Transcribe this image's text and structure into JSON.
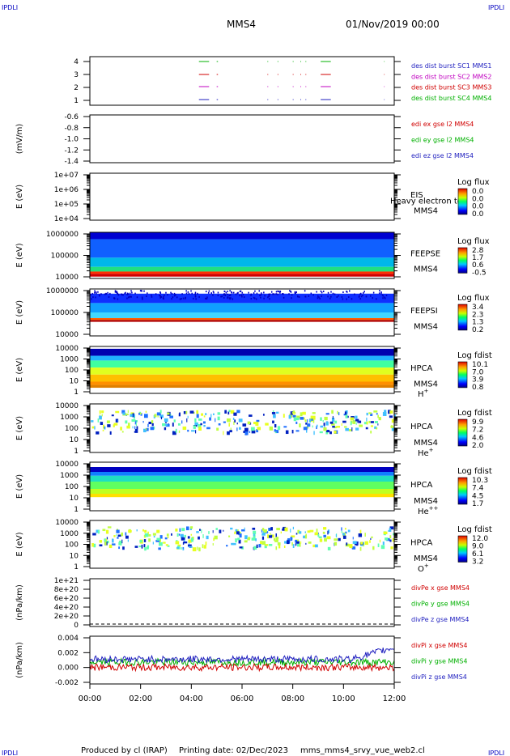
{
  "header": {
    "corner_label": "IPDLI",
    "title": "MMS4",
    "date": "01/Nov/2019 00:00"
  },
  "footer": {
    "produced_by": "Produced by cl (IRAP)",
    "printing_date": "Printing date: 02/Dec/2023",
    "filename": "mms_mms4_srvy_vue_web2.cl"
  },
  "chart_data": {
    "type": "spectrogram",
    "x_ticks": [
      "00:00",
      "02:00",
      "04:00",
      "06:00",
      "08:00",
      "10:00",
      "12:00"
    ],
    "x_range_hours": [
      0,
      12
    ],
    "panels": [
      {
        "id": "burst",
        "kind": "burst",
        "ylabel": "",
        "y_ticks": [
          "4",
          "3",
          "2",
          "1"
        ],
        "legend": [
          {
            "text": "des dist burst SC1 MMS1",
            "color": "#1f1fbf"
          },
          {
            "text": "des dist burst SC2 MMS2",
            "color": "#c000c0"
          },
          {
            "text": "des dist burst SC3 MMS3",
            "color": "#d00000"
          },
          {
            "text": "des dist burst SC4 MMS4",
            "color": "#00b000"
          }
        ],
        "burst_segments_hours": [
          [
            4.3,
            4.7
          ],
          [
            5.0,
            5.05
          ],
          [
            7.0,
            7.03
          ],
          [
            7.4,
            7.43
          ],
          [
            8.0,
            8.03
          ],
          [
            8.3,
            8.33
          ],
          [
            8.5,
            8.53
          ],
          [
            9.1,
            9.5
          ],
          [
            11.6,
            11.62
          ]
        ]
      },
      {
        "id": "edi",
        "kind": "lines-empty",
        "ylabel": "(mV/m)",
        "y_ticks": [
          "-0.6",
          "-0.8",
          "-1.0",
          "-1.2",
          "-1.4"
        ],
        "legend": [
          {
            "text": "edi ex gse l2 MMS4",
            "color": "#d00000"
          },
          {
            "text": "edi ey gse l2 MMS4",
            "color": "#00b000"
          },
          {
            "text": "edi ez gse l2 MMS4",
            "color": "#1f1fbf"
          }
        ]
      },
      {
        "id": "eis",
        "kind": "spectro-empty",
        "ylabel": "E (eV)",
        "y_ticks": [
          "1e+07",
          "1e+06",
          "1e+05",
          "1e+04"
        ],
        "labels": [
          "EIS",
          "MMS4"
        ],
        "overlay_text": "Heavy electron to",
        "scale_title": "Log flux",
        "scale_values": [
          "0.0",
          "0.0",
          "0.0",
          "0.0"
        ]
      },
      {
        "id": "feepse",
        "kind": "spectro",
        "ylabel": "E (eV)",
        "y_ticks": [
          "1000000",
          "100000",
          "10000"
        ],
        "labels": [
          "FEEPSE",
          "MMS4"
        ],
        "scale_title": "Log flux",
        "scale_values": [
          "2.8",
          "1.7",
          "0.6",
          "-0.5"
        ]
      },
      {
        "id": "feepsi",
        "kind": "spectro",
        "ylabel": "E (eV)",
        "y_ticks": [
          "1000000",
          "100000",
          "10000"
        ],
        "labels": [
          "FEEPSI",
          "MMS4"
        ],
        "scale_title": "Log flux",
        "scale_values": [
          "3.4",
          "2.3",
          "1.3",
          "0.2"
        ]
      },
      {
        "id": "hpca-h",
        "kind": "spectro",
        "ylabel": "E (eV)",
        "y_ticks": [
          "10000",
          "1000",
          "100",
          "10",
          "1"
        ],
        "labels": [
          "HPCA",
          "MMS4"
        ],
        "species": "H",
        "species_sup": "+",
        "scale_title": "Log fdist",
        "scale_values": [
          "10.1",
          "7.0",
          "3.9",
          "0.8"
        ]
      },
      {
        "id": "hpca-he",
        "kind": "spectro",
        "ylabel": "E (eV)",
        "y_ticks": [
          "10000",
          "1000",
          "100",
          "10",
          "1"
        ],
        "labels": [
          "HPCA",
          "MMS4"
        ],
        "species": "He",
        "species_sup": "+",
        "scale_title": "Log fdist",
        "scale_values": [
          "9.9",
          "7.2",
          "4.6",
          "2.0"
        ]
      },
      {
        "id": "hpca-he2",
        "kind": "spectro",
        "ylabel": "E (eV)",
        "y_ticks": [
          "10000",
          "1000",
          "100",
          "10",
          "1"
        ],
        "labels": [
          "HPCA",
          "MMS4"
        ],
        "species": "He",
        "species_sup": "++",
        "scale_title": "Log fdist",
        "scale_values": [
          "10.3",
          "7.4",
          "4.5",
          "1.7"
        ]
      },
      {
        "id": "hpca-o",
        "kind": "spectro",
        "ylabel": "E (eV)",
        "y_ticks": [
          "10000",
          "1000",
          "100",
          "10",
          "1"
        ],
        "labels": [
          "HPCA",
          "MMS4"
        ],
        "species": "O",
        "species_sup": "+",
        "scale_title": "Log fdist",
        "scale_values": [
          "12.0",
          "9.0",
          "6.1",
          "3.2"
        ]
      },
      {
        "id": "divpe",
        "kind": "lines-empty",
        "ylabel": "(nPa/km)",
        "y_ticks": [
          "1e+21",
          "8e+20",
          "6e+20",
          "4e+20",
          "2e+20",
          "0"
        ],
        "legend": [
          {
            "text": "divPe x gse MMS4",
            "color": "#d00000"
          },
          {
            "text": "divPe y gse MMS4",
            "color": "#00b000"
          },
          {
            "text": "divPe z gse MMS4",
            "color": "#1f1fbf"
          }
        ]
      },
      {
        "id": "divpi",
        "kind": "lines",
        "ylabel": "(nPa/km)",
        "y_ticks": [
          "0.004",
          "0.002",
          "0.000",
          "-0.002"
        ],
        "y_range": [
          -0.0033,
          0.005
        ],
        "legend": [
          {
            "text": "divPi x gse MMS4",
            "color": "#d00000"
          },
          {
            "text": "divPi y gse MMS4",
            "color": "#00b000"
          },
          {
            "text": "divPi z gse MMS4",
            "color": "#1f1fbf"
          }
        ]
      }
    ]
  }
}
